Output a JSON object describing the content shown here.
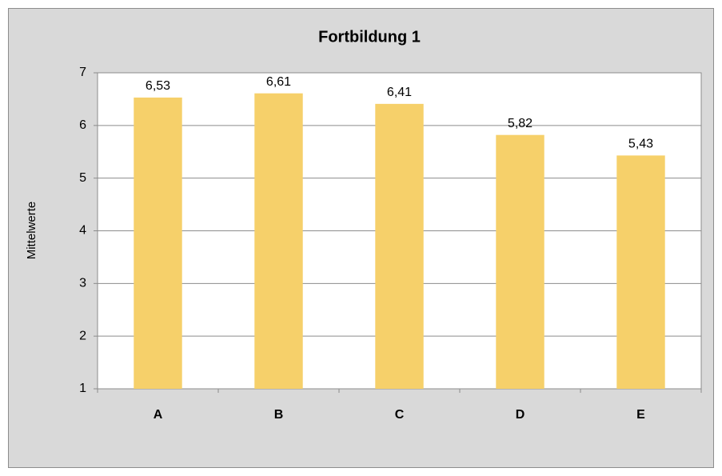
{
  "chart_data": {
    "type": "bar",
    "title": "Fortbildung 1",
    "y_label": "Mittelwerte",
    "categories": [
      "A",
      "B",
      "C",
      "D",
      "E"
    ],
    "values": [
      6.53,
      6.61,
      6.41,
      5.82,
      5.43
    ],
    "value_labels": [
      "6,53",
      "6,61",
      "6,41",
      "5,82",
      "5,43"
    ],
    "color": "#f6d06a",
    "ylim": [
      1,
      7
    ],
    "yticks": [
      1,
      2,
      3,
      4,
      5,
      6,
      7
    ],
    "grid": true
  }
}
